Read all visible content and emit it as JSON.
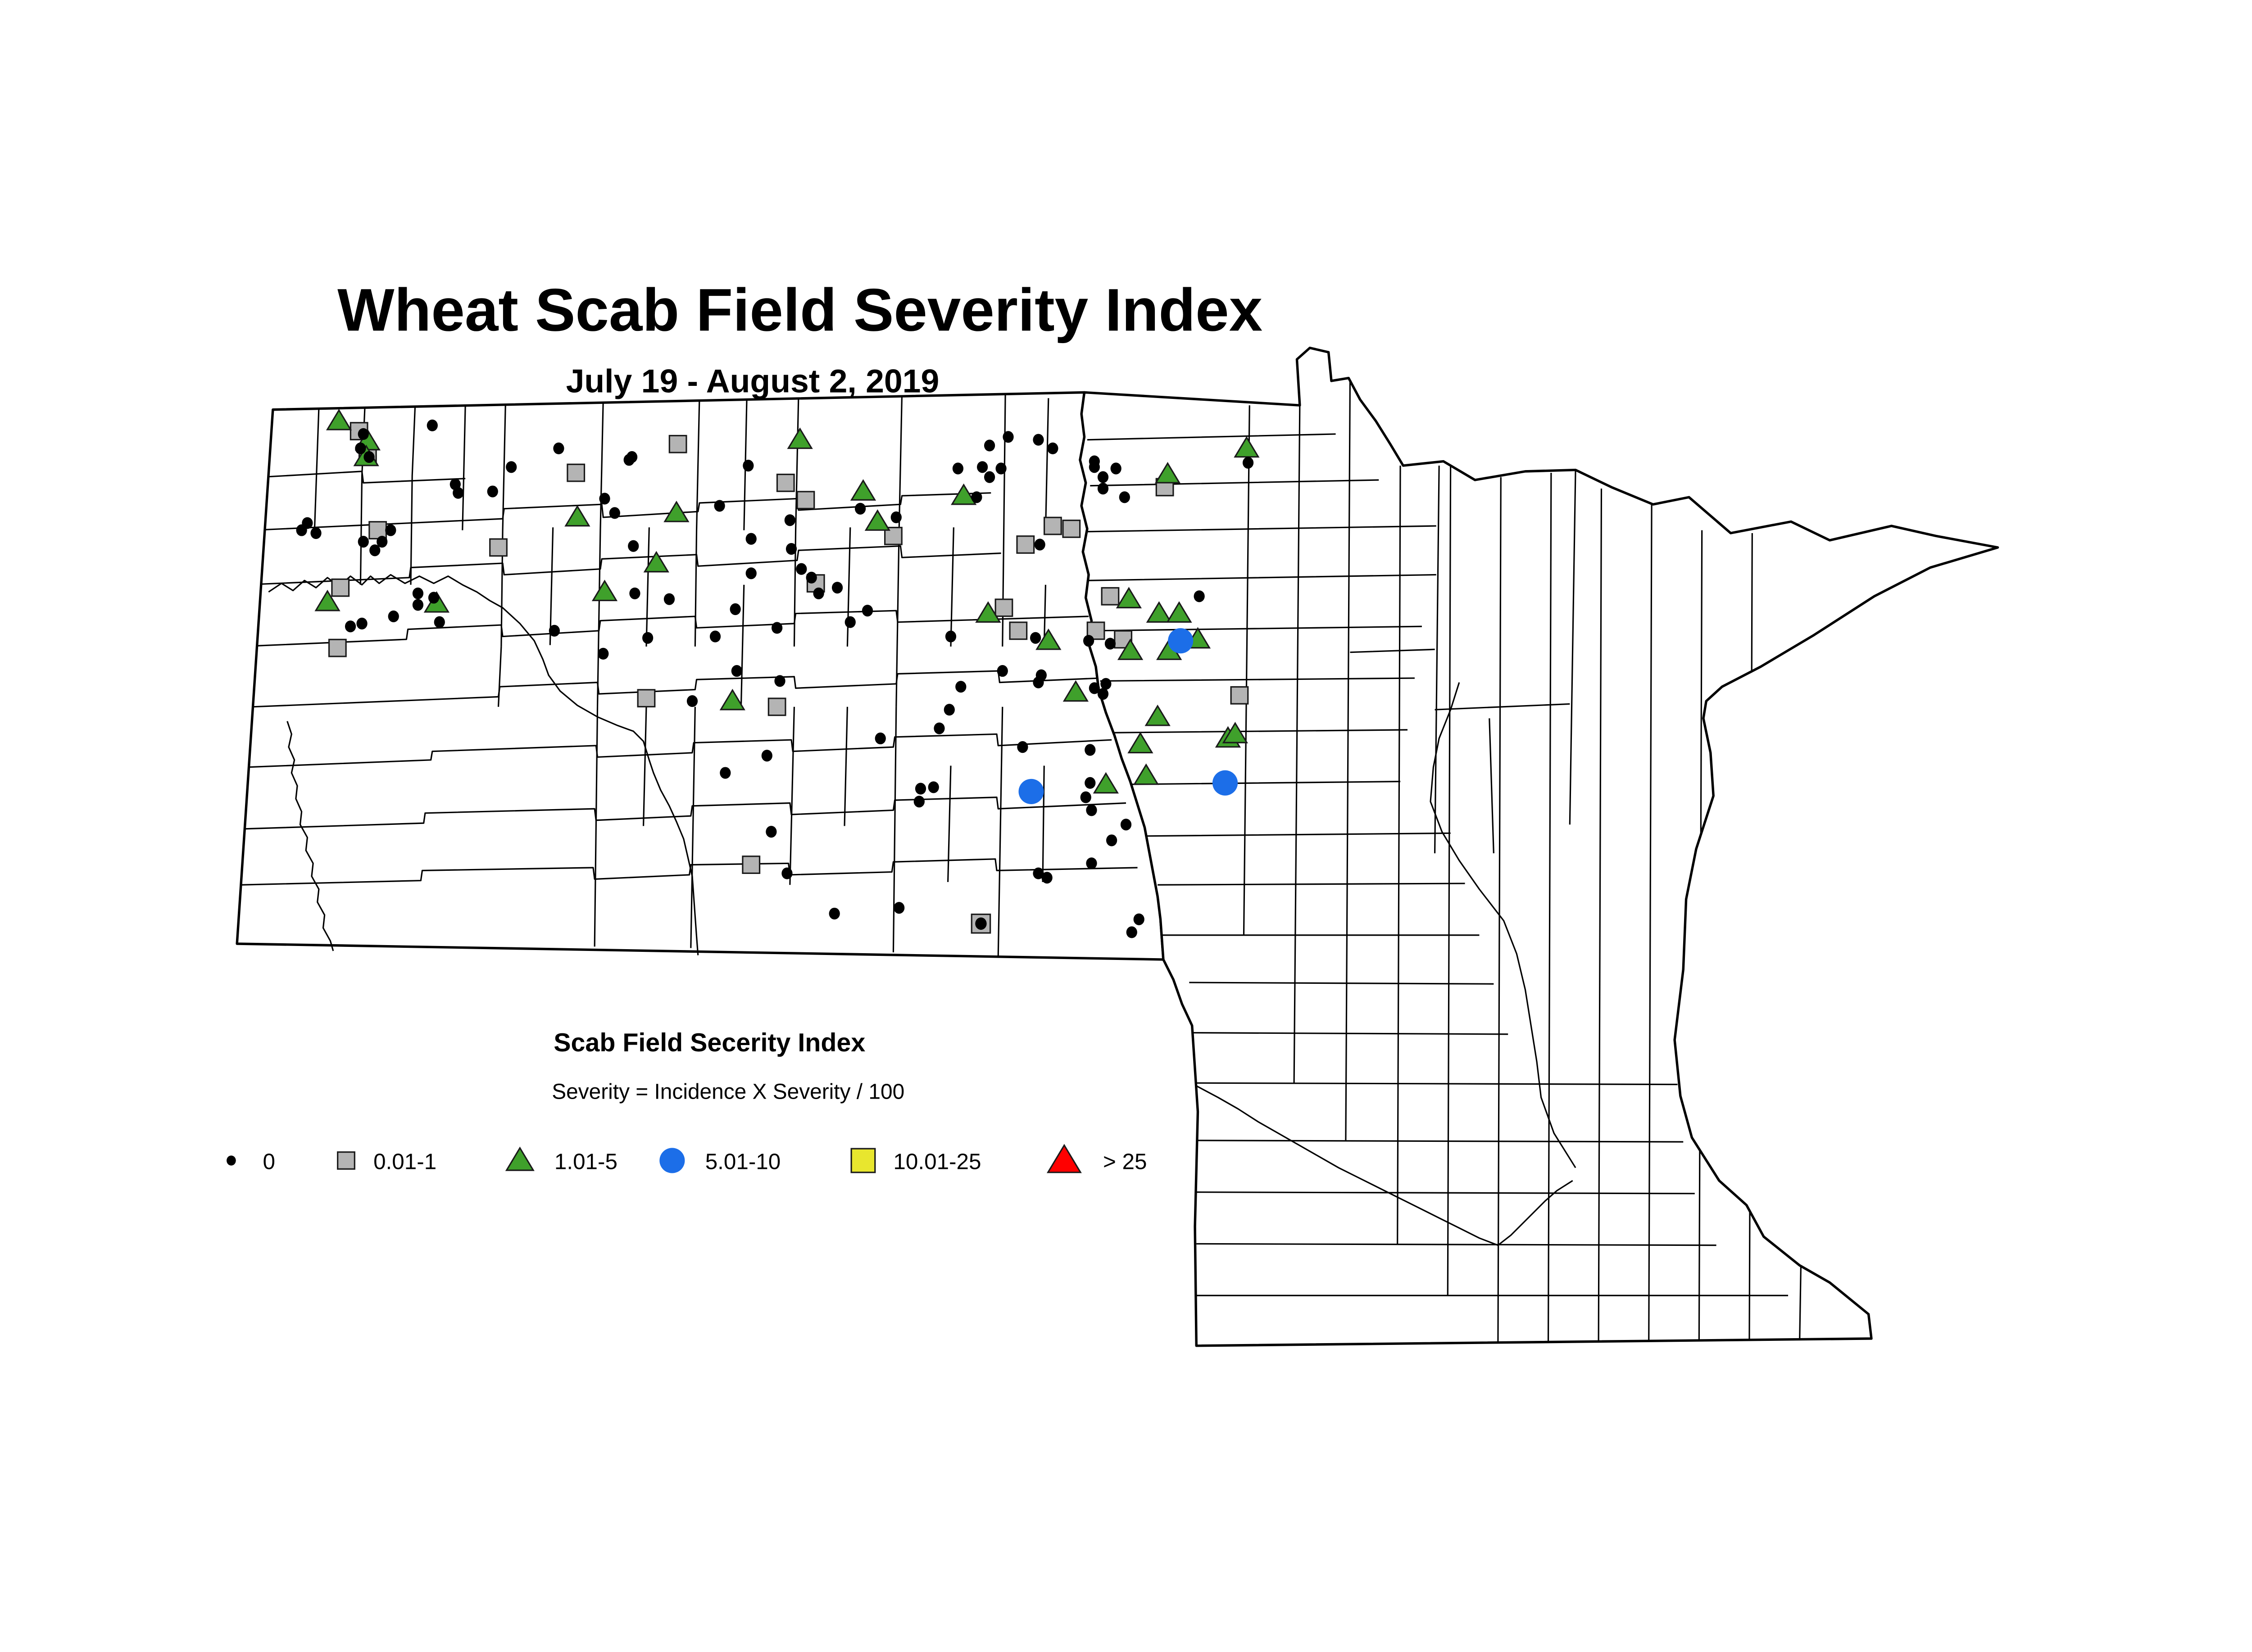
{
  "title": "Wheat Scab Field Severity Index",
  "subtitle": "July 19 - August 2, 2019",
  "legend": {
    "title": "Scab Field Secerity Index",
    "formula": "Severity = Incidence X Severity / 100",
    "items": [
      {
        "label": "0",
        "symbol": "dot",
        "color": "#000000"
      },
      {
        "label": "0.01-1",
        "symbol": "square",
        "color": "#b4b4b4"
      },
      {
        "label": "1.01-5",
        "symbol": "triangle",
        "color": "#3fa02b"
      },
      {
        "label": "5.01-10",
        "symbol": "circle",
        "color": "#1c6ee8"
      },
      {
        "label": "10.01-25",
        "symbol": "square",
        "color": "#e8e62e"
      },
      {
        "label": "> 25",
        "symbol": "triangle",
        "color": "#ff0000"
      }
    ]
  },
  "map": {
    "regions": [
      "North Dakota",
      "Minnesota"
    ],
    "markers": {
      "severity_0": [
        [
          253,
          148
        ],
        [
          251,
          158
        ],
        [
          257,
          164
        ],
        [
          301,
          142
        ],
        [
          356,
          171
        ],
        [
          389,
          158
        ],
        [
          317,
          183
        ],
        [
          319,
          189
        ],
        [
          343,
          188
        ],
        [
          440,
          164
        ],
        [
          421,
          193
        ],
        [
          428,
          203
        ],
        [
          214,
          210
        ],
        [
          210,
          215
        ],
        [
          220,
          217
        ],
        [
          272,
          215
        ],
        [
          253,
          223
        ],
        [
          266,
          223
        ],
        [
          261,
          229
        ],
        [
          291,
          259
        ],
        [
          291,
          267
        ],
        [
          302,
          262
        ],
        [
          274,
          275
        ],
        [
          244,
          282
        ],
        [
          252,
          280
        ],
        [
          306,
          279
        ],
        [
          386,
          285
        ],
        [
          420,
          301
        ],
        [
          438,
          166
        ],
        [
          521,
          170
        ],
        [
          501,
          198
        ],
        [
          550,
          208
        ],
        [
          599,
          200
        ],
        [
          624,
          206
        ],
        [
          667,
          172
        ],
        [
          680,
          192
        ],
        [
          441,
          226
        ],
        [
          442,
          259
        ],
        [
          466,
          263
        ],
        [
          523,
          221
        ],
        [
          523,
          245
        ],
        [
          512,
          270
        ],
        [
          551,
          228
        ],
        [
          558,
          242
        ],
        [
          565,
          248
        ],
        [
          570,
          259
        ],
        [
          583,
          255
        ],
        [
          592,
          279
        ],
        [
          604,
          271
        ],
        [
          541,
          283
        ],
        [
          451,
          290
        ],
        [
          498,
          289
        ],
        [
          513,
          313
        ],
        [
          543,
          320
        ],
        [
          662,
          289
        ],
        [
          689,
          156
        ],
        [
          702,
          150
        ],
        [
          723,
          152
        ],
        [
          733,
          158
        ],
        [
          697,
          172
        ],
        [
          684,
          171
        ],
        [
          689,
          178
        ],
        [
          762,
          167
        ],
        [
          762,
          171
        ],
        [
          768,
          178
        ],
        [
          777,
          172
        ],
        [
          768,
          186
        ],
        [
          783,
          192
        ],
        [
          869,
          168
        ],
        [
          835,
          261
        ],
        [
          724,
          225
        ],
        [
          721,
          290
        ],
        [
          758,
          292
        ],
        [
          773,
          294
        ],
        [
          698,
          313
        ],
        [
          725,
          316
        ],
        [
          723,
          321
        ],
        [
          762,
          325
        ],
        [
          770,
          322
        ],
        [
          768,
          329
        ],
        [
          482,
          334
        ],
        [
          613,
          360
        ],
        [
          654,
          353
        ],
        [
          661,
          340
        ],
        [
          669,
          324
        ],
        [
          534,
          372
        ],
        [
          505,
          384
        ],
        [
          537,
          425
        ],
        [
          641,
          395
        ],
        [
          650,
          394
        ],
        [
          640,
          404
        ],
        [
          548,
          454
        ],
        [
          581,
          482
        ],
        [
          626,
          478
        ],
        [
          712,
          366
        ],
        [
          759,
          368
        ],
        [
          759,
          391
        ],
        [
          756,
          401
        ],
        [
          760,
          410
        ],
        [
          784,
          420
        ],
        [
          774,
          431
        ],
        [
          760,
          447
        ],
        [
          723,
          454
        ],
        [
          729,
          457
        ],
        [
          793,
          486
        ],
        [
          788,
          495
        ]
      ],
      "severity_0_01_1": [
        [
          250,
          146
        ],
        [
          256,
          162
        ],
        [
          401,
          175
        ],
        [
          472,
          155
        ],
        [
          263,
          215
        ],
        [
          347,
          227
        ],
        [
          237,
          255
        ],
        [
          235,
          297
        ],
        [
          547,
          182
        ],
        [
          561,
          194
        ],
        [
          622,
          219
        ],
        [
          568,
          252
        ],
        [
          450,
          332
        ],
        [
          541,
          338
        ],
        [
          523,
          448
        ],
        [
          733,
          212
        ],
        [
          746,
          214
        ],
        [
          714,
          225
        ],
        [
          811,
          185
        ],
        [
          699,
          269
        ],
        [
          709,
          285
        ],
        [
          763,
          285
        ],
        [
          782,
          291
        ],
        [
          773,
          261
        ],
        [
          863,
          330
        ]
      ],
      "severity_1_01_5": [
        [
          236,
          139
        ],
        [
          256,
          153
        ],
        [
          255,
          164
        ],
        [
          402,
          206
        ],
        [
          557,
          152
        ],
        [
          471,
          203
        ],
        [
          601,
          188
        ],
        [
          611,
          209
        ],
        [
          671,
          191
        ],
        [
          457,
          238
        ],
        [
          421,
          258
        ],
        [
          228,
          265
        ],
        [
          304,
          266
        ],
        [
          510,
          334
        ],
        [
          813,
          176
        ],
        [
          868,
          158
        ],
        [
          688,
          273
        ],
        [
          730,
          292
        ],
        [
          786,
          263
        ],
        [
          807,
          273
        ],
        [
          821,
          273
        ],
        [
          834,
          291
        ],
        [
          770,
          392
        ],
        [
          798,
          386
        ],
        [
          787,
          299
        ],
        [
          814,
          299
        ],
        [
          749,
          328
        ],
        [
          806,
          345
        ],
        [
          794,
          364
        ],
        [
          855,
          360
        ],
        [
          860,
          357
        ]
      ],
      "severity_5_01_10": [
        [
          822,
          292
        ],
        [
          718,
          397
        ],
        [
          853,
          391
        ]
      ],
      "severity_0_in_square": [
        [
          683,
          489
        ]
      ]
    }
  }
}
